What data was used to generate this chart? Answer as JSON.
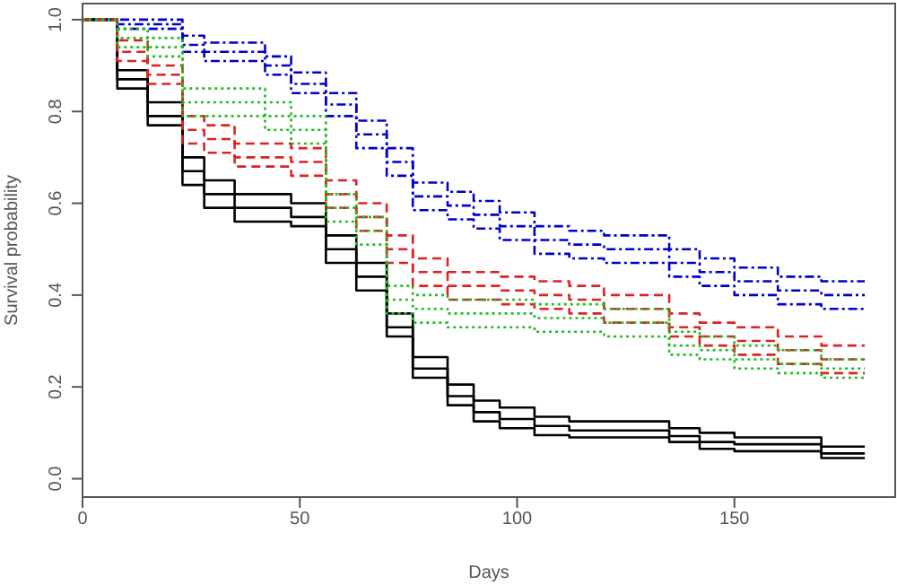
{
  "chart_data": {
    "type": "step",
    "xlabel": "Days",
    "ylabel": "Survival probability",
    "x": [
      0,
      8,
      15,
      23,
      28,
      35,
      42,
      48,
      56,
      63,
      70,
      76,
      84,
      90,
      96,
      104,
      112,
      120,
      135,
      142,
      150,
      160,
      170,
      180
    ],
    "xlim": [
      0,
      187
    ],
    "xticks": [
      0,
      50,
      100,
      150
    ],
    "ylim": [
      -0.04,
      1.035
    ],
    "yticks": [
      {
        "value": 0,
        "label": "0.0"
      },
      {
        "value": 0.2,
        "label": "0.2"
      },
      {
        "value": 0.4,
        "label": "0.4"
      },
      {
        "value": 0.6,
        "label": "0.6"
      },
      {
        "value": 0.8,
        "label": "0.8"
      },
      {
        "value": 1,
        "label": "1.0"
      }
    ],
    "grid": false,
    "marker": "none",
    "series": [
      {
        "color": "#000000",
        "line_style": "solid",
        "values": [
          1,
          0.87,
          0.79,
          0.67,
          0.62,
          0.59,
          0.59,
          0.57,
          0.5,
          0.44,
          0.33,
          0.24,
          0.18,
          0.145,
          0.13,
          0.115,
          0.105,
          0.105,
          0.093,
          0.08,
          0.075,
          0.075,
          0.055,
          0.055
        ]
      },
      {
        "color": "#000000",
        "line_style": "solid",
        "values": [
          1,
          0.85,
          0.77,
          0.64,
          0.59,
          0.56,
          0.56,
          0.55,
          0.47,
          0.41,
          0.31,
          0.22,
          0.16,
          0.125,
          0.11,
          0.095,
          0.09,
          0.09,
          0.08,
          0.065,
          0.06,
          0.06,
          0.045,
          0.045
        ]
      },
      {
        "color": "#000000",
        "line_style": "solid",
        "values": [
          1,
          0.89,
          0.82,
          0.7,
          0.65,
          0.62,
          0.62,
          0.6,
          0.53,
          0.47,
          0.36,
          0.265,
          0.205,
          0.17,
          0.155,
          0.135,
          0.125,
          0.125,
          0.11,
          0.1,
          0.09,
          0.09,
          0.07,
          0.07
        ]
      },
      {
        "color": "#0000cc",
        "line_style": "dashdot",
        "values": [
          1,
          0.99,
          0.99,
          0.945,
          0.93,
          0.93,
          0.9,
          0.86,
          0.815,
          0.75,
          0.69,
          0.615,
          0.595,
          0.575,
          0.55,
          0.52,
          0.51,
          0.5,
          0.47,
          0.45,
          0.43,
          0.41,
          0.4,
          0.4
        ]
      },
      {
        "color": "#0000cc",
        "line_style": "dashdot",
        "values": [
          1,
          0.98,
          0.98,
          0.93,
          0.91,
          0.91,
          0.88,
          0.84,
          0.79,
          0.72,
          0.66,
          0.585,
          0.565,
          0.545,
          0.52,
          0.49,
          0.48,
          0.47,
          0.44,
          0.42,
          0.4,
          0.38,
          0.37,
          0.37
        ]
      },
      {
        "color": "#0000cc",
        "line_style": "dashdot",
        "values": [
          1,
          1,
          1,
          0.965,
          0.95,
          0.95,
          0.92,
          0.885,
          0.84,
          0.78,
          0.72,
          0.645,
          0.625,
          0.605,
          0.58,
          0.55,
          0.54,
          0.53,
          0.5,
          0.48,
          0.46,
          0.44,
          0.43,
          0.43
        ]
      },
      {
        "color": "#dd2222",
        "line_style": "dashed",
        "values": [
          1,
          0.93,
          0.88,
          0.76,
          0.74,
          0.7,
          0.7,
          0.69,
          0.62,
          0.57,
          0.5,
          0.45,
          0.42,
          0.42,
          0.41,
          0.4,
          0.39,
          0.37,
          0.33,
          0.31,
          0.3,
          0.28,
          0.26,
          0.26
        ]
      },
      {
        "color": "#dd2222",
        "line_style": "dashed",
        "values": [
          1,
          0.91,
          0.86,
          0.73,
          0.71,
          0.68,
          0.68,
          0.66,
          0.59,
          0.54,
          0.47,
          0.42,
          0.39,
          0.39,
          0.38,
          0.37,
          0.36,
          0.34,
          0.31,
          0.29,
          0.27,
          0.25,
          0.23,
          0.23
        ]
      },
      {
        "color": "#dd2222",
        "line_style": "dashed",
        "values": [
          1,
          0.955,
          0.9,
          0.79,
          0.77,
          0.73,
          0.73,
          0.72,
          0.65,
          0.6,
          0.53,
          0.48,
          0.45,
          0.45,
          0.44,
          0.43,
          0.42,
          0.4,
          0.36,
          0.34,
          0.33,
          0.31,
          0.29,
          0.29
        ]
      },
      {
        "color": "#22bb22",
        "line_style": "dotted",
        "values": [
          1,
          0.96,
          0.94,
          0.82,
          0.82,
          0.82,
          0.79,
          0.76,
          0.59,
          0.54,
          0.39,
          0.37,
          0.36,
          0.36,
          0.36,
          0.35,
          0.35,
          0.34,
          0.29,
          0.28,
          0.26,
          0.25,
          0.24,
          0.24
        ]
      },
      {
        "color": "#22bb22",
        "line_style": "dotted",
        "values": [
          1,
          0.94,
          0.92,
          0.79,
          0.79,
          0.79,
          0.76,
          0.73,
          0.56,
          0.51,
          0.36,
          0.34,
          0.33,
          0.33,
          0.33,
          0.32,
          0.32,
          0.31,
          0.27,
          0.26,
          0.24,
          0.23,
          0.22,
          0.22
        ]
      },
      {
        "color": "#22bb22",
        "line_style": "dotted",
        "values": [
          1,
          0.98,
          0.96,
          0.85,
          0.85,
          0.85,
          0.82,
          0.79,
          0.62,
          0.57,
          0.42,
          0.4,
          0.39,
          0.39,
          0.39,
          0.38,
          0.38,
          0.37,
          0.32,
          0.31,
          0.29,
          0.28,
          0.26,
          0.26
        ]
      }
    ]
  }
}
